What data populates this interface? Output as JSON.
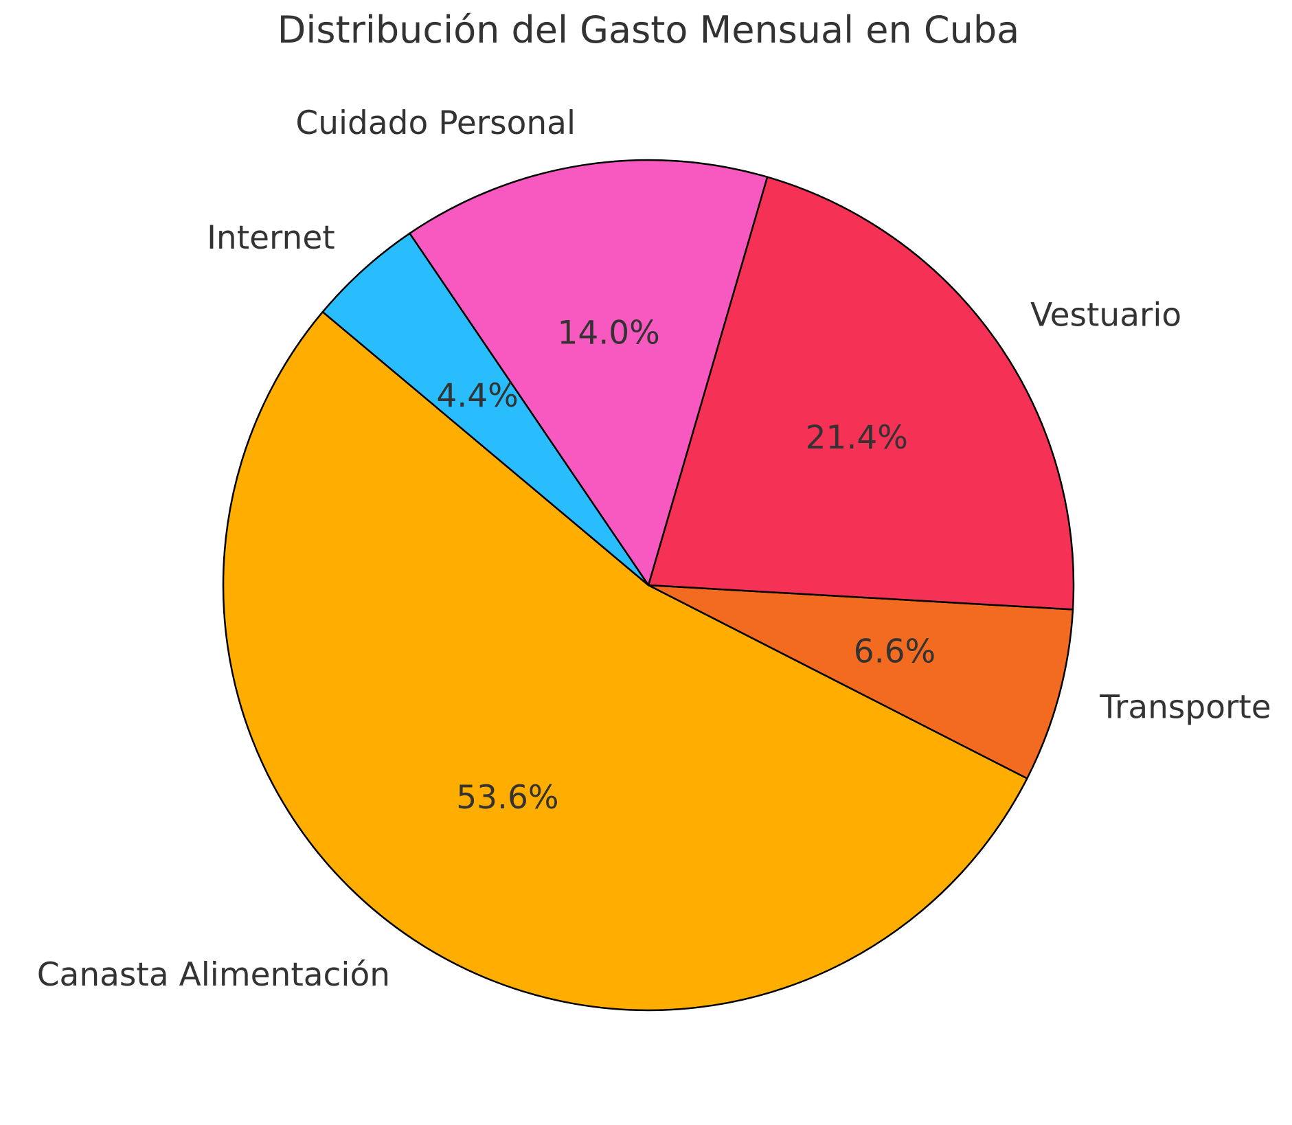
{
  "chart_data": {
    "type": "pie",
    "title": "Distribución del Gasto Mensual en Cuba",
    "categories": [
      "Canasta Alimentación",
      "Transporte",
      "Vestuario",
      "Cuidado Personal",
      "Internet"
    ],
    "values": [
      53.6,
      6.6,
      21.4,
      14.0,
      4.4
    ],
    "percent_labels": [
      "53.6%",
      "6.6%",
      "21.4%",
      "14.0%",
      "4.4%"
    ],
    "colors": [
      "#FFAE00",
      "#F26B21",
      "#F53255",
      "#F759C0",
      "#29BDFD"
    ],
    "start_angle_deg": 140,
    "direction": "counterclockwise",
    "edge_color": "#000000",
    "legend": "none"
  }
}
